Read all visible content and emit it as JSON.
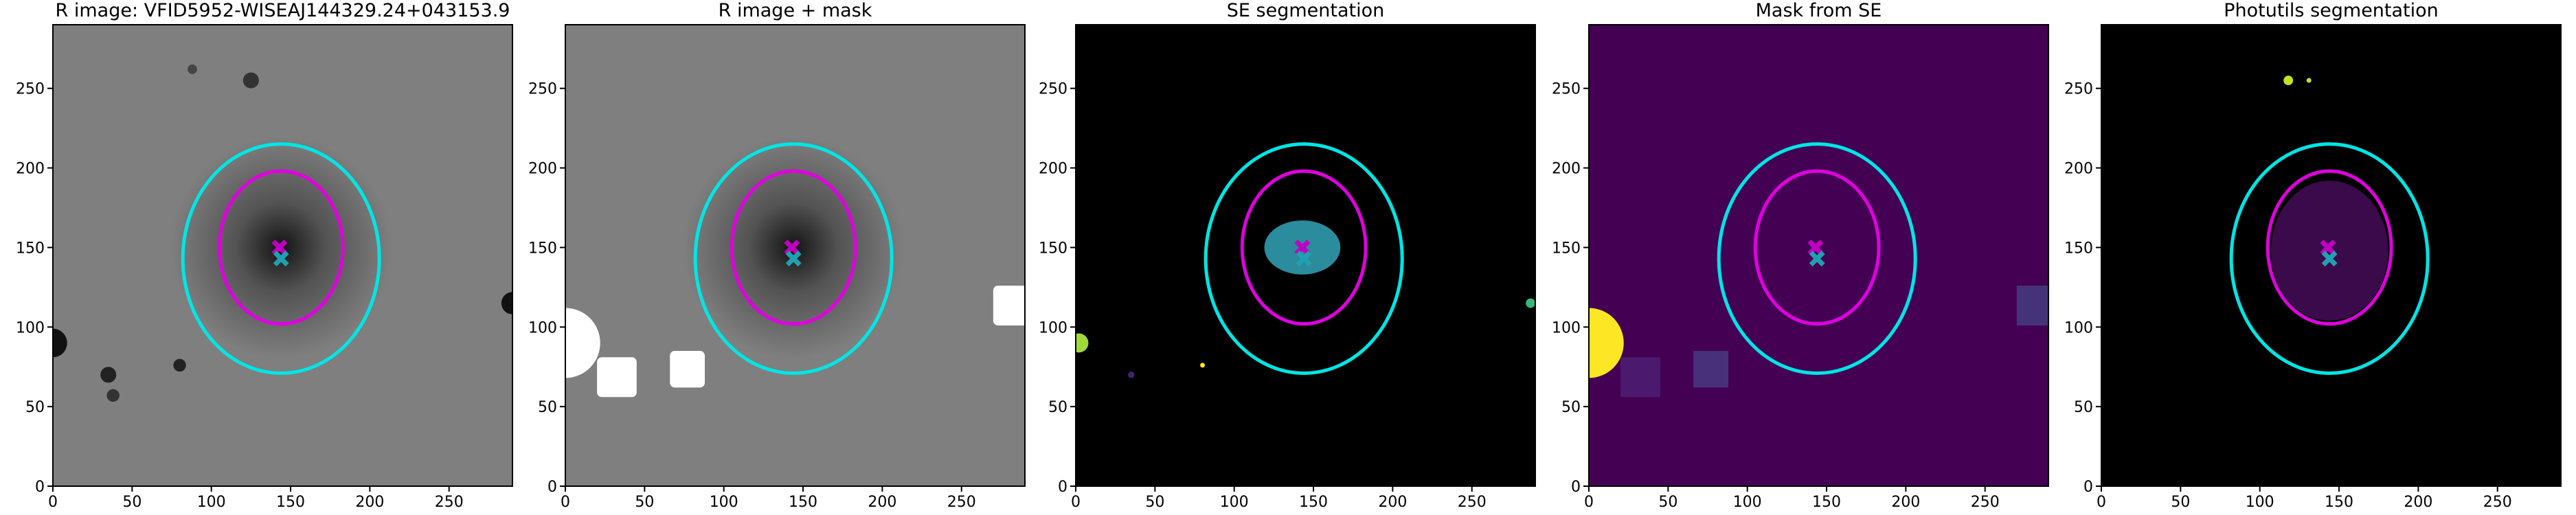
{
  "chart_data": [
    {
      "type": "image",
      "title": "R image: VFID5952-WISEAJ144329.24+043153.9",
      "background": "#7f7f7f",
      "xlim": [
        0,
        290
      ],
      "ylim": [
        0,
        290
      ],
      "xticks": [
        0,
        50,
        100,
        150,
        200,
        250
      ],
      "yticks": [
        0,
        50,
        100,
        150,
        200,
        250
      ],
      "ellipses": [
        {
          "cx": 144,
          "cy": 143,
          "rx": 62,
          "ry": 72,
          "color": "#00e5e5"
        },
        {
          "cx": 144,
          "cy": 150,
          "rx": 39,
          "ry": 48,
          "color": "#e000e0"
        }
      ],
      "markers": [
        {
          "x": 143,
          "y": 150,
          "color": "#c000c0"
        },
        {
          "x": 144,
          "y": 143,
          "color": "#20a0b0"
        }
      ]
    },
    {
      "type": "image",
      "title": "R image + mask",
      "background": "#7f7f7f",
      "xlim": [
        0,
        290
      ],
      "ylim": [
        0,
        290
      ],
      "xticks": [
        0,
        50,
        100,
        150,
        200,
        250
      ],
      "yticks": [
        0,
        50,
        100,
        150,
        200,
        250
      ],
      "ellipses": [
        {
          "cx": 144,
          "cy": 143,
          "rx": 62,
          "ry": 72,
          "color": "#00e5e5"
        },
        {
          "cx": 144,
          "cy": 150,
          "rx": 39,
          "ry": 48,
          "color": "#e000e0"
        }
      ],
      "markers": [
        {
          "x": 143,
          "y": 150,
          "color": "#c000c0"
        },
        {
          "x": 144,
          "y": 143,
          "color": "#20a0b0"
        }
      ]
    },
    {
      "type": "image",
      "title": "SE segmentation",
      "background": "#000000",
      "xlim": [
        0,
        290
      ],
      "ylim": [
        0,
        290
      ],
      "xticks": [
        0,
        50,
        100,
        150,
        200,
        250
      ],
      "yticks": [
        0,
        50,
        100,
        150,
        200,
        250
      ],
      "ellipses": [
        {
          "cx": 144,
          "cy": 143,
          "rx": 62,
          "ry": 72,
          "color": "#00e5e5"
        },
        {
          "cx": 144,
          "cy": 150,
          "rx": 39,
          "ry": 48,
          "color": "#e000e0"
        }
      ],
      "markers": [
        {
          "x": 143,
          "y": 150,
          "color": "#c000c0"
        },
        {
          "x": 144,
          "y": 143,
          "color": "#20a0b0"
        }
      ]
    },
    {
      "type": "image",
      "title": "Mask from SE",
      "background": "#440154",
      "xlim": [
        0,
        290
      ],
      "ylim": [
        0,
        290
      ],
      "xticks": [
        0,
        50,
        100,
        150,
        200,
        250
      ],
      "yticks": [
        0,
        50,
        100,
        150,
        200,
        250
      ],
      "ellipses": [
        {
          "cx": 144,
          "cy": 143,
          "rx": 62,
          "ry": 72,
          "color": "#00e5e5"
        },
        {
          "cx": 144,
          "cy": 150,
          "rx": 39,
          "ry": 48,
          "color": "#e000e0"
        }
      ],
      "markers": [
        {
          "x": 143,
          "y": 150,
          "color": "#c000c0"
        },
        {
          "x": 144,
          "y": 143,
          "color": "#20a0b0"
        }
      ]
    },
    {
      "type": "image",
      "title": "Photutils segmentation",
      "background": "#000000",
      "xlim": [
        0,
        290
      ],
      "ylim": [
        0,
        290
      ],
      "xticks": [
        0,
        50,
        100,
        150,
        200,
        250
      ],
      "yticks": [
        0,
        50,
        100,
        150,
        200,
        250
      ],
      "ellipses": [
        {
          "cx": 144,
          "cy": 143,
          "rx": 62,
          "ry": 72,
          "color": "#00e5e5"
        },
        {
          "cx": 144,
          "cy": 150,
          "rx": 39,
          "ry": 48,
          "color": "#e000e0"
        }
      ],
      "markers": [
        {
          "x": 143,
          "y": 150,
          "color": "#c000c0"
        },
        {
          "x": 144,
          "y": 143,
          "color": "#20a0b0"
        }
      ]
    }
  ]
}
